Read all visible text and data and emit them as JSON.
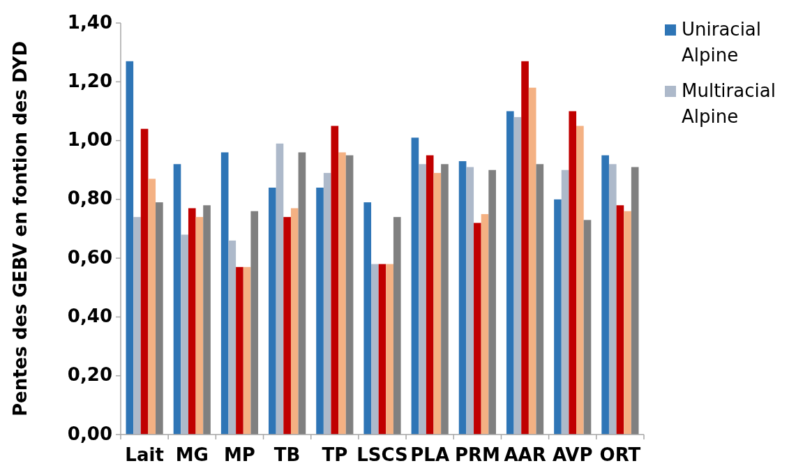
{
  "chart_data": {
    "type": "bar",
    "ylabel": "Pentes des GEBV en fontion des DYD",
    "categories": [
      "Lait",
      "MG",
      "MP",
      "TB",
      "TP",
      "LSCS",
      "PLA",
      "PRM",
      "AAR",
      "AVP",
      "ORT"
    ],
    "series": [
      {
        "name": "Uniracial Alpine",
        "color": "#2e75b6",
        "values": [
          1.27,
          0.92,
          0.96,
          0.84,
          0.84,
          0.79,
          1.01,
          0.93,
          1.1,
          0.8,
          0.95
        ]
      },
      {
        "name": "Multiracial Alpine",
        "color": "#adb9ca",
        "values": [
          0.74,
          0.68,
          0.66,
          0.99,
          0.89,
          0.58,
          0.92,
          0.91,
          1.08,
          0.9,
          0.92
        ]
      },
      {
        "color": "#c00000",
        "values": [
          1.04,
          0.77,
          0.57,
          0.74,
          1.05,
          0.58,
          0.95,
          0.72,
          1.27,
          1.1,
          0.78
        ]
      },
      {
        "color": "#f4b183",
        "values": [
          0.87,
          0.74,
          0.57,
          0.77,
          0.96,
          0.58,
          0.89,
          0.75,
          1.18,
          1.05,
          0.76
        ]
      },
      {
        "color": "#808080",
        "values": [
          0.79,
          0.78,
          0.76,
          0.96,
          0.95,
          0.74,
          0.92,
          0.9,
          0.92,
          0.73,
          0.91
        ]
      }
    ],
    "ylim": [
      0,
      1.4
    ],
    "yticks": [
      {
        "value": 0,
        "label": "0,00"
      },
      {
        "value": 0.2,
        "label": "0,20"
      },
      {
        "value": 0.4,
        "label": "0,40"
      },
      {
        "value": 0.6,
        "label": "0,60"
      },
      {
        "value": 0.8,
        "label": "0,80"
      },
      {
        "value": 1.0,
        "label": "1,00"
      },
      {
        "value": 1.2,
        "label": "1,20"
      },
      {
        "value": 1.4,
        "label": "1,40"
      }
    ],
    "grid": false,
    "legend": "top right"
  }
}
